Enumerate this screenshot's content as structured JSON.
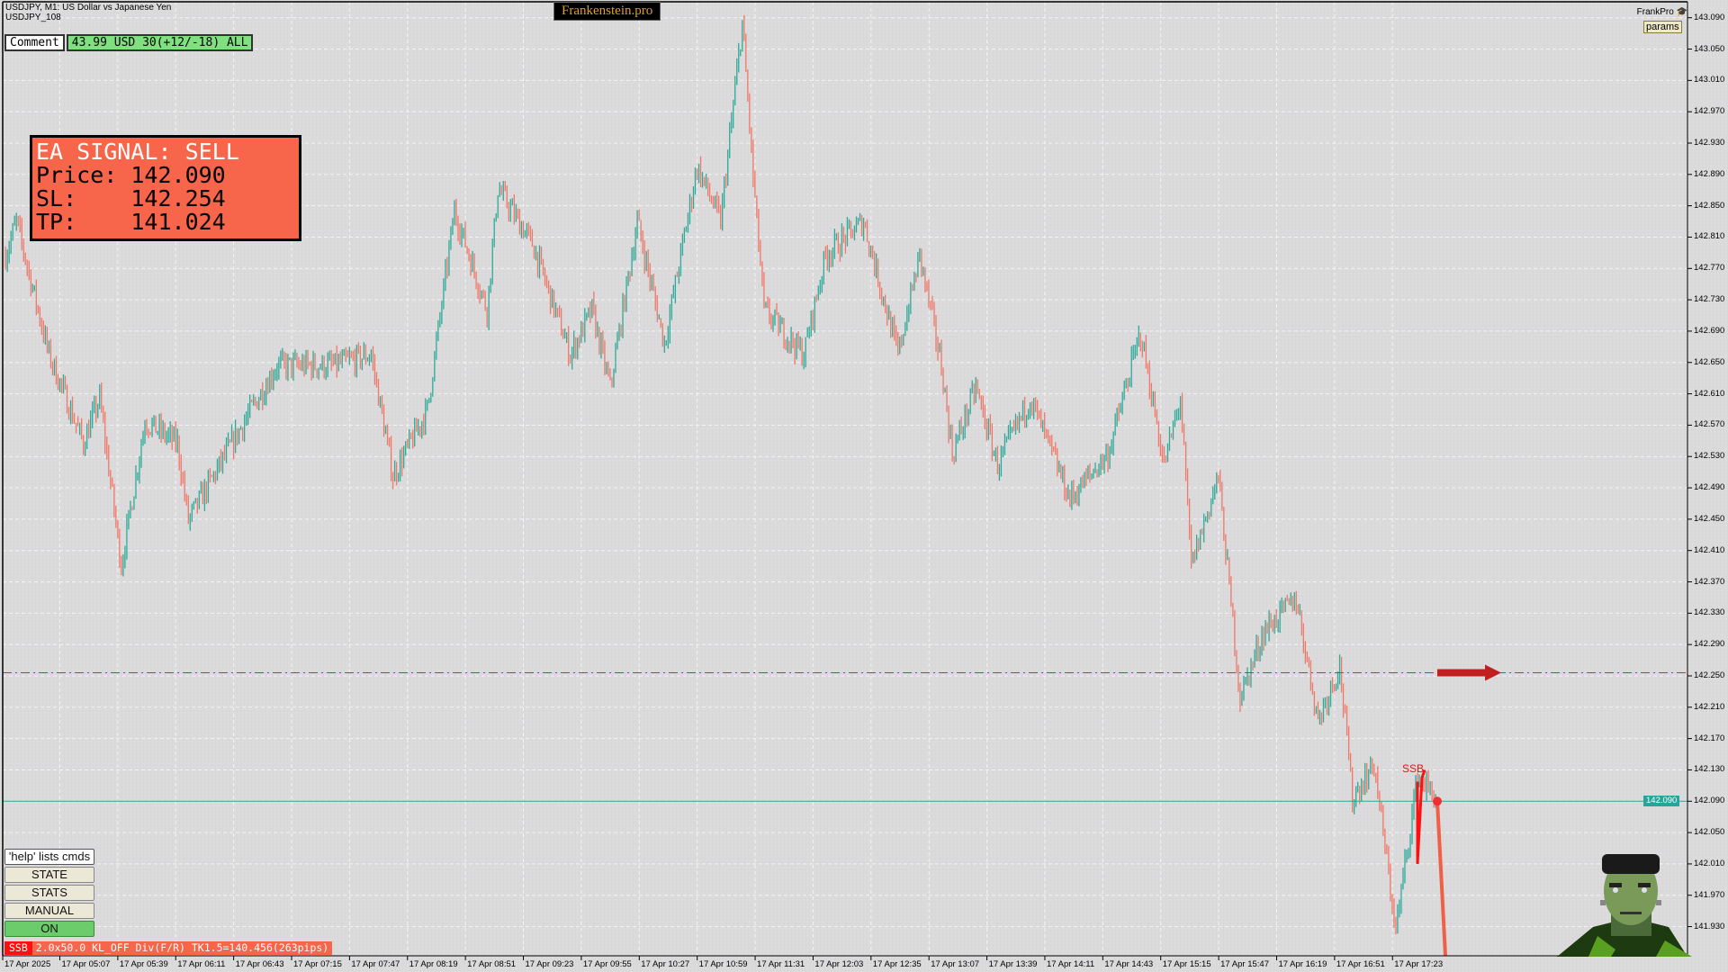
{
  "header": {
    "symbol_line": "USDJPY, M1:  US Dollar vs Japanese Yen",
    "sub_line": "USDJPY_108",
    "brand": "Frankenstein.pro"
  },
  "comment": {
    "label": "Comment",
    "value": "43.99 USD 30(+12/-18) ALL"
  },
  "signal": {
    "title": "EA SIGNAL: SELL",
    "price_row": "Price: 142.090",
    "sl_row": "SL:    142.254",
    "tp_row": "TP:    141.024"
  },
  "top_right": {
    "name": "FrankPro",
    "icon": "graduation-cap-icon",
    "params_label": "params"
  },
  "panel": {
    "help": "'help' lists cmds",
    "buttons": [
      "STATE",
      "STATS",
      "MANUAL"
    ],
    "on": "ON"
  },
  "status": {
    "tag": "SSB",
    "text": "2.0x50.0 KL_OFF Div(F/R) TK1.5=140.456(263pips)"
  },
  "marker_label": "SSB",
  "colors": {
    "bull": "#2eaa98",
    "bear": "#f07868",
    "price_line": "#26a69a",
    "sl_line": "#ff2020",
    "signal_box": "#f7654a"
  },
  "chart_data": {
    "type": "candlestick",
    "symbol": "USDJPY",
    "timeframe": "M1",
    "current_price": "142.090",
    "sl_level": 142.254,
    "ylim": [
      141.91,
      143.1
    ],
    "y_ticks": [
      "143.090",
      "143.050",
      "143.010",
      "142.970",
      "142.930",
      "142.890",
      "142.850",
      "142.810",
      "142.770",
      "142.730",
      "142.690",
      "142.650",
      "142.610",
      "142.570",
      "142.530",
      "142.490",
      "142.450",
      "142.410",
      "142.370",
      "142.330",
      "142.290",
      "142.250",
      "142.210",
      "142.170",
      "142.130",
      "142.090",
      "142.050",
      "142.010",
      "141.970",
      "141.930"
    ],
    "x_ticks": [
      "17 Apr 2025",
      "17 Apr 05:07",
      "17 Apr 05:39",
      "17 Apr 06:11",
      "17 Apr 06:43",
      "17 Apr 07:15",
      "17 Apr 07:47",
      "17 Apr 08:19",
      "17 Apr 08:51",
      "17 Apr 09:23",
      "17 Apr 09:55",
      "17 Apr 10:27",
      "17 Apr 10:59",
      "17 Apr 11:31",
      "17 Apr 12:03",
      "17 Apr 12:35",
      "17 Apr 13:07",
      "17 Apr 13:39",
      "17 Apr 14:11",
      "17 Apr 14:43",
      "17 Apr 15:15",
      "17 Apr 15:47",
      "17 Apr 16:19",
      "17 Apr 16:51",
      "17 Apr 17:23"
    ],
    "price_path": [
      [
        "04:37",
        142.787
      ],
      [
        "04:43",
        142.83
      ],
      [
        "05:01",
        142.66
      ],
      [
        "05:20",
        142.547
      ],
      [
        "05:29",
        142.604
      ],
      [
        "05:41",
        142.391
      ],
      [
        "05:54",
        142.575
      ],
      [
        "06:12",
        142.547
      ],
      [
        "06:18",
        142.448
      ],
      [
        "06:49",
        142.575
      ],
      [
        "07:07",
        142.646
      ],
      [
        "07:38",
        142.646
      ],
      [
        "07:59",
        142.66
      ],
      [
        "08:11",
        142.505
      ],
      [
        "08:30",
        142.589
      ],
      [
        "08:45",
        142.844
      ],
      [
        "09:03",
        142.717
      ],
      [
        "09:09",
        142.872
      ],
      [
        "09:28",
        142.802
      ],
      [
        "09:49",
        142.66
      ],
      [
        "10:01",
        142.717
      ],
      [
        "10:11",
        142.618
      ],
      [
        "10:26",
        142.83
      ],
      [
        "10:41",
        142.674
      ],
      [
        "10:59",
        142.9
      ],
      [
        "11:12",
        142.83
      ],
      [
        "11:24",
        143.084
      ],
      [
        "11:30",
        142.886
      ],
      [
        "11:36",
        142.717
      ],
      [
        "11:58",
        142.66
      ],
      [
        "12:10",
        142.787
      ],
      [
        "12:31",
        142.83
      ],
      [
        "12:50",
        142.66
      ],
      [
        "13:02",
        142.787
      ],
      [
        "13:14",
        142.646
      ],
      [
        "13:20",
        142.533
      ],
      [
        "13:33",
        142.618
      ],
      [
        "13:45",
        142.519
      ],
      [
        "14:03",
        142.604
      ],
      [
        "14:25",
        142.476
      ],
      [
        "14:46",
        142.533
      ],
      [
        "15:04",
        142.688
      ],
      [
        "15:17",
        142.519
      ],
      [
        "15:26",
        142.604
      ],
      [
        "15:32",
        142.391
      ],
      [
        "15:47",
        142.505
      ],
      [
        "15:59",
        142.222
      ],
      [
        "16:12",
        142.307
      ],
      [
        "16:30",
        142.349
      ],
      [
        "16:42",
        142.194
      ],
      [
        "16:54",
        142.264
      ],
      [
        "17:01",
        142.094
      ],
      [
        "17:13",
        142.137
      ],
      [
        "17:25",
        141.925
      ],
      [
        "17:37",
        142.123
      ],
      [
        "17:47",
        142.094
      ]
    ]
  }
}
